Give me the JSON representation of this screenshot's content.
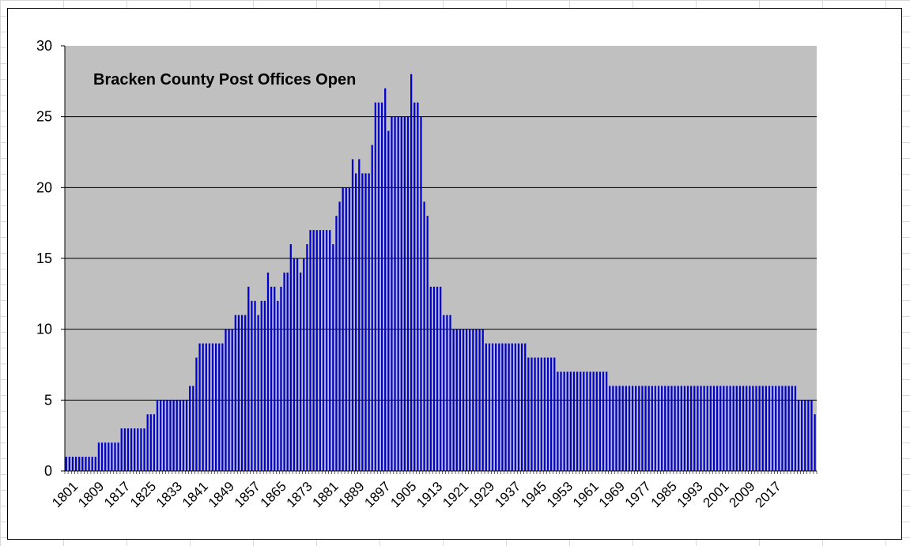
{
  "chart_data": {
    "type": "bar",
    "title": "Bracken County Post Offices Open",
    "xlabel": "",
    "ylabel": "",
    "ylim": [
      0,
      30
    ],
    "yticks": [
      0,
      5,
      10,
      15,
      20,
      25,
      30
    ],
    "x_start": 1801,
    "x_end": 2019,
    "x_tick_labels": [
      "1801",
      "1809",
      "1817",
      "1825",
      "1833",
      "1841",
      "1849",
      "1857",
      "1865",
      "1873",
      "1881",
      "1889",
      "1897",
      "1905",
      "1913",
      "1921",
      "1929",
      "1937",
      "1945",
      "1953",
      "1961",
      "1969",
      "1977",
      "1985",
      "1993",
      "2001",
      "2009",
      "2017"
    ],
    "grid": "horizontal",
    "legend": "none",
    "colors": {
      "bar": "#0000cc",
      "plot_background": "#c0c0c0",
      "gridline": "#000000"
    },
    "values": [
      1,
      1,
      1,
      1,
      1,
      1,
      1,
      1,
      1,
      1,
      2,
      2,
      2,
      2,
      2,
      2,
      2,
      3,
      3,
      3,
      3,
      3,
      3,
      3,
      3,
      4,
      4,
      4,
      5,
      5,
      5,
      5,
      5,
      5,
      5,
      5,
      5,
      5,
      6,
      6,
      8,
      9,
      9,
      9,
      9,
      9,
      9,
      9,
      9,
      10,
      10,
      10,
      11,
      11,
      11,
      11,
      13,
      12,
      12,
      11,
      12,
      12,
      14,
      13,
      13,
      12,
      13,
      14,
      14,
      16,
      15,
      15,
      14,
      15,
      16,
      17,
      17,
      17,
      17,
      17,
      17,
      17,
      16,
      18,
      19,
      20,
      20,
      20,
      22,
      21,
      22,
      21,
      21,
      21,
      23,
      26,
      26,
      26,
      27,
      24,
      25,
      25,
      25,
      25,
      25,
      25,
      28,
      26,
      26,
      25,
      19,
      18,
      13,
      13,
      13,
      13,
      11,
      11,
      11,
      10,
      10,
      10,
      10,
      10,
      10,
      10,
      10,
      10,
      10,
      9,
      9,
      9,
      9,
      9,
      9,
      9,
      9,
      9,
      9,
      9,
      9,
      9,
      8,
      8,
      8,
      8,
      8,
      8,
      8,
      8,
      8,
      7,
      7,
      7,
      7,
      7,
      7,
      7,
      7,
      7,
      7,
      7,
      7,
      7,
      7,
      7,
      7,
      6,
      6,
      6,
      6,
      6,
      6,
      6,
      6,
      6,
      6,
      6,
      6,
      6,
      6,
      6,
      6,
      6,
      6,
      6,
      6,
      6,
      6,
      6,
      6,
      6,
      6,
      6,
      6,
      6,
      6,
      6,
      6,
      6,
      6,
      6,
      6,
      6,
      6,
      6,
      6,
      6,
      6,
      6,
      6,
      6,
      6,
      6,
      6,
      6,
      6,
      6,
      6,
      6,
      6,
      6,
      6,
      6,
      6,
      5,
      5,
      5,
      5,
      5,
      4
    ]
  }
}
